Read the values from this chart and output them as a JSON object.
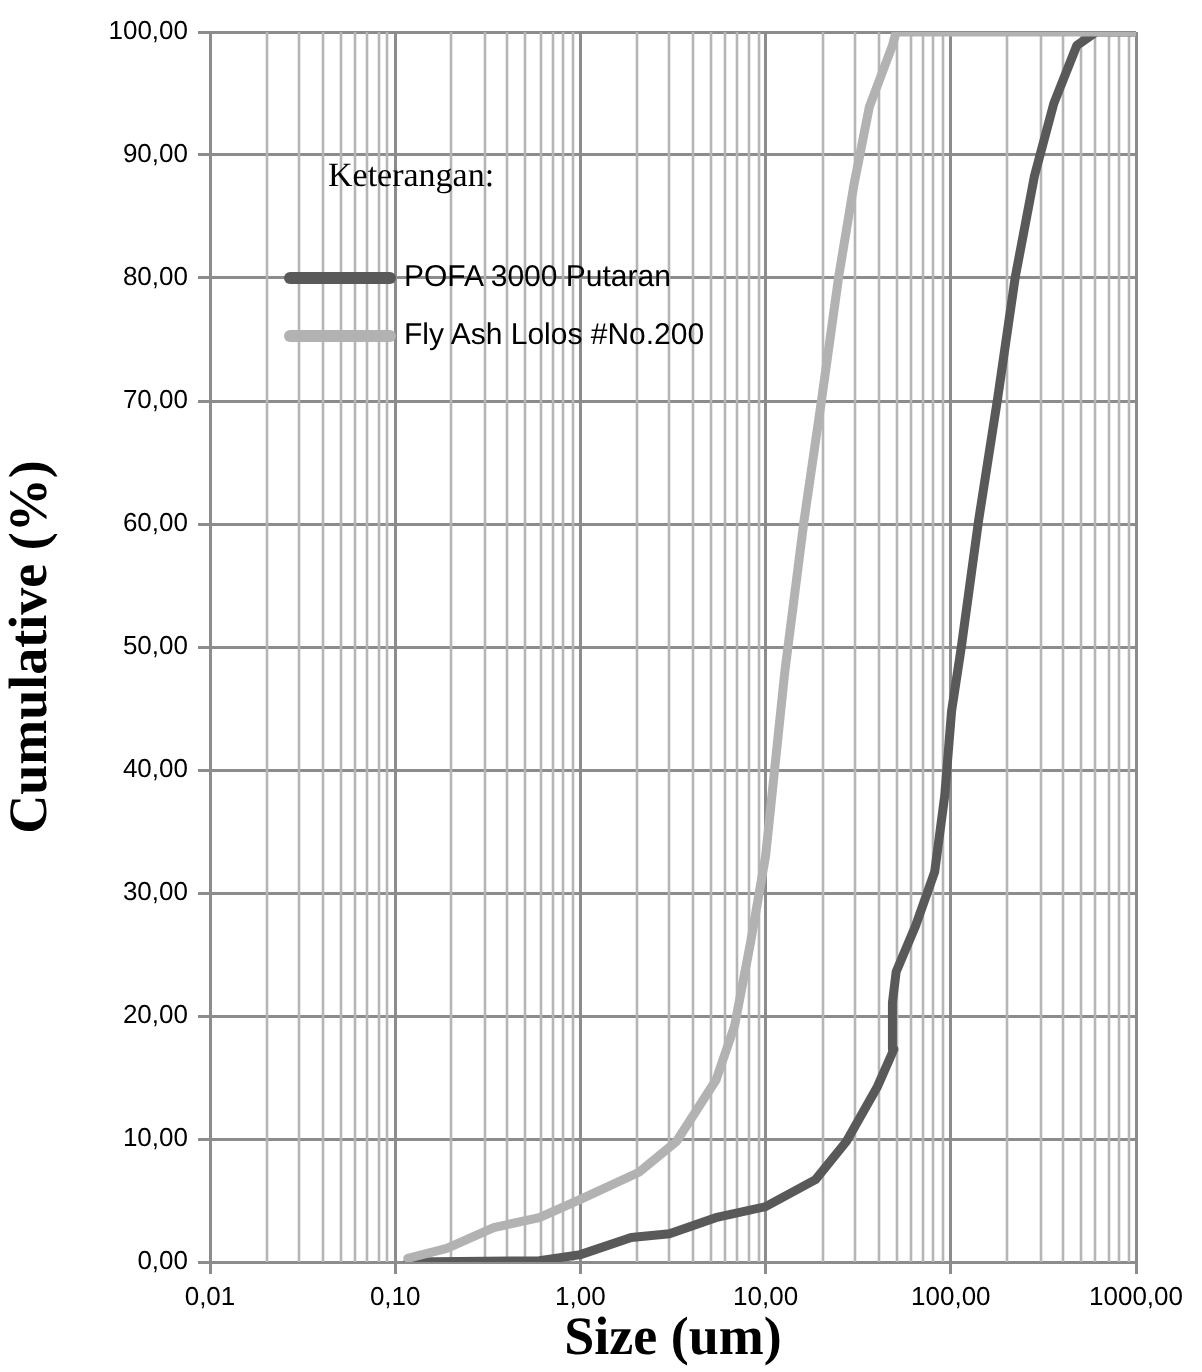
{
  "chart_data": {
    "type": "line",
    "xlabel": "Size (um)",
    "ylabel": "Cumulative (%)",
    "legend_title": "Keterangan:",
    "log": "x",
    "grid": true,
    "legend": "top left",
    "marker": "none",
    "line_style": "solid",
    "xlim": [
      0.01,
      1000
    ],
    "xticks": [
      {
        "value": 0.01,
        "label": "0,01"
      },
      {
        "value": 0.1,
        "label": "0,10"
      },
      {
        "value": 1,
        "label": "1,00"
      },
      {
        "value": 10,
        "label": "10,00"
      },
      {
        "value": 100,
        "label": "100,00"
      },
      {
        "value": 1000,
        "label": "1000,00"
      }
    ],
    "ylim": [
      0,
      100
    ],
    "yticks": [
      {
        "value": 0,
        "label": "0,00"
      },
      {
        "value": 10,
        "label": "10,00"
      },
      {
        "value": 20,
        "label": "20,00"
      },
      {
        "value": 30,
        "label": "30,00"
      },
      {
        "value": 40,
        "label": "40,00"
      },
      {
        "value": 50,
        "label": "50,00"
      },
      {
        "value": 60,
        "label": "60,00"
      },
      {
        "value": 70,
        "label": "70,00"
      },
      {
        "value": 80,
        "label": "80,00"
      },
      {
        "value": 90,
        "label": "90,00"
      },
      {
        "value": 100,
        "label": "100,00"
      }
    ],
    "series": [
      {
        "name": "POFA 3000 Putaran",
        "color": "#595959",
        "x": [
          0.117,
          0.6,
          1,
          1.88,
          3.03,
          5.37,
          10,
          18.6,
          27.3,
          40,
          49.3,
          48.4,
          50.7,
          64.4,
          81.8,
          92.7,
          101,
          114,
          141,
          179,
          223,
          283,
          360,
          479,
          608,
          1000
        ],
        "values": [
          0,
          0.1,
          0.6,
          2,
          2.3,
          3.6,
          4.5,
          6.7,
          9.8,
          14.2,
          17.3,
          21.1,
          23.6,
          27.3,
          31.7,
          37.9,
          44.8,
          50,
          60.2,
          70.2,
          80.1,
          88.3,
          94.2,
          98.9,
          100,
          100
        ]
      },
      {
        "name": "Fly Ash Lolos #No.200",
        "color": "#b2b2b2",
        "x": [
          0.117,
          0.19,
          0.34,
          0.6,
          1,
          2.07,
          3.3,
          5.4,
          6.8,
          8.3,
          10,
          12.7,
          16.1,
          20.1,
          24.8,
          30,
          36.3,
          48.4,
          50.7,
          1000
        ],
        "values": [
          0.3,
          1.1,
          2.8,
          3.6,
          5.1,
          7.3,
          9.8,
          14.8,
          19.2,
          26,
          33,
          48,
          60.2,
          70.2,
          80.1,
          87.6,
          93.9,
          98.9,
          100,
          100
        ]
      }
    ]
  }
}
